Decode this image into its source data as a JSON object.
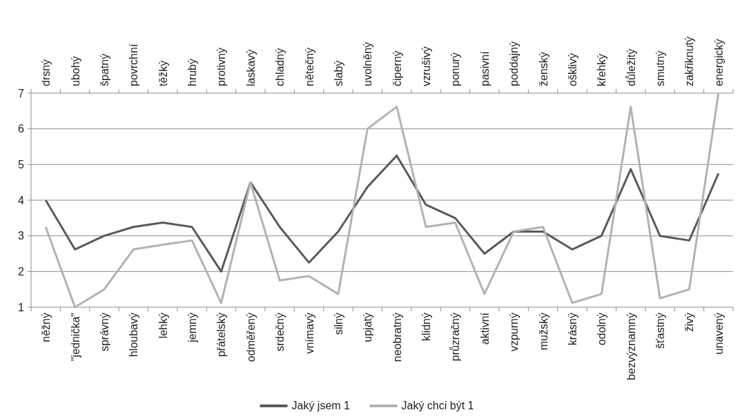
{
  "chart_data": {
    "type": "line",
    "categories": [
      "něžný",
      "\"jednička\"",
      "správný",
      "hloubavý",
      "lehký",
      "jemný",
      "přátelský",
      "odměřený",
      "srdečný",
      "vnímavý",
      "silný",
      "upjatý",
      "neobratný",
      "klidný",
      "průzračný",
      "aktivní",
      "vzpurný",
      "mužský",
      "krásný",
      "odolný",
      "bezvýznamný",
      "šťastný",
      "živý",
      "unavený"
    ],
    "annotations": [
      "drsný",
      "ubohý",
      "špatný",
      "povrchní",
      "těžký",
      "hrubý",
      "protivný",
      "laskavý",
      "chladný",
      "nětečný",
      "slabý",
      "uvolněný",
      "čiperný",
      "vzrušivý",
      "ponurý",
      "pasivní",
      "poddajný",
      "ženský",
      "ošklivý",
      "křehký",
      "důležitý",
      "smutný",
      "zakřiknutý",
      "energický"
    ],
    "series": [
      {
        "name": "Jaký jsem 1",
        "color": "#595959",
        "values": [
          4.0,
          2.62,
          3.0,
          3.25,
          3.37,
          3.25,
          2.0,
          4.5,
          3.25,
          2.25,
          3.12,
          4.37,
          5.25,
          3.87,
          3.5,
          2.5,
          3.12,
          3.12,
          2.62,
          3.0,
          4.87,
          3.0,
          2.87,
          4.75
        ]
      },
      {
        "name": "Jaký chci být 1",
        "color": "#b2b2b2",
        "values": [
          3.25,
          1.0,
          1.5,
          2.62,
          2.75,
          2.87,
          1.12,
          4.5,
          1.75,
          1.87,
          1.37,
          6.0,
          6.62,
          3.25,
          3.37,
          1.37,
          3.12,
          3.25,
          1.12,
          1.37,
          6.62,
          1.25,
          1.5,
          7.0
        ]
      }
    ],
    "ylim": [
      1,
      7
    ],
    "yticks": [
      1,
      2,
      3,
      4,
      5,
      6,
      7
    ],
    "grid": "y",
    "legend": "bottom",
    "marker": "none",
    "line_style": "solid"
  }
}
